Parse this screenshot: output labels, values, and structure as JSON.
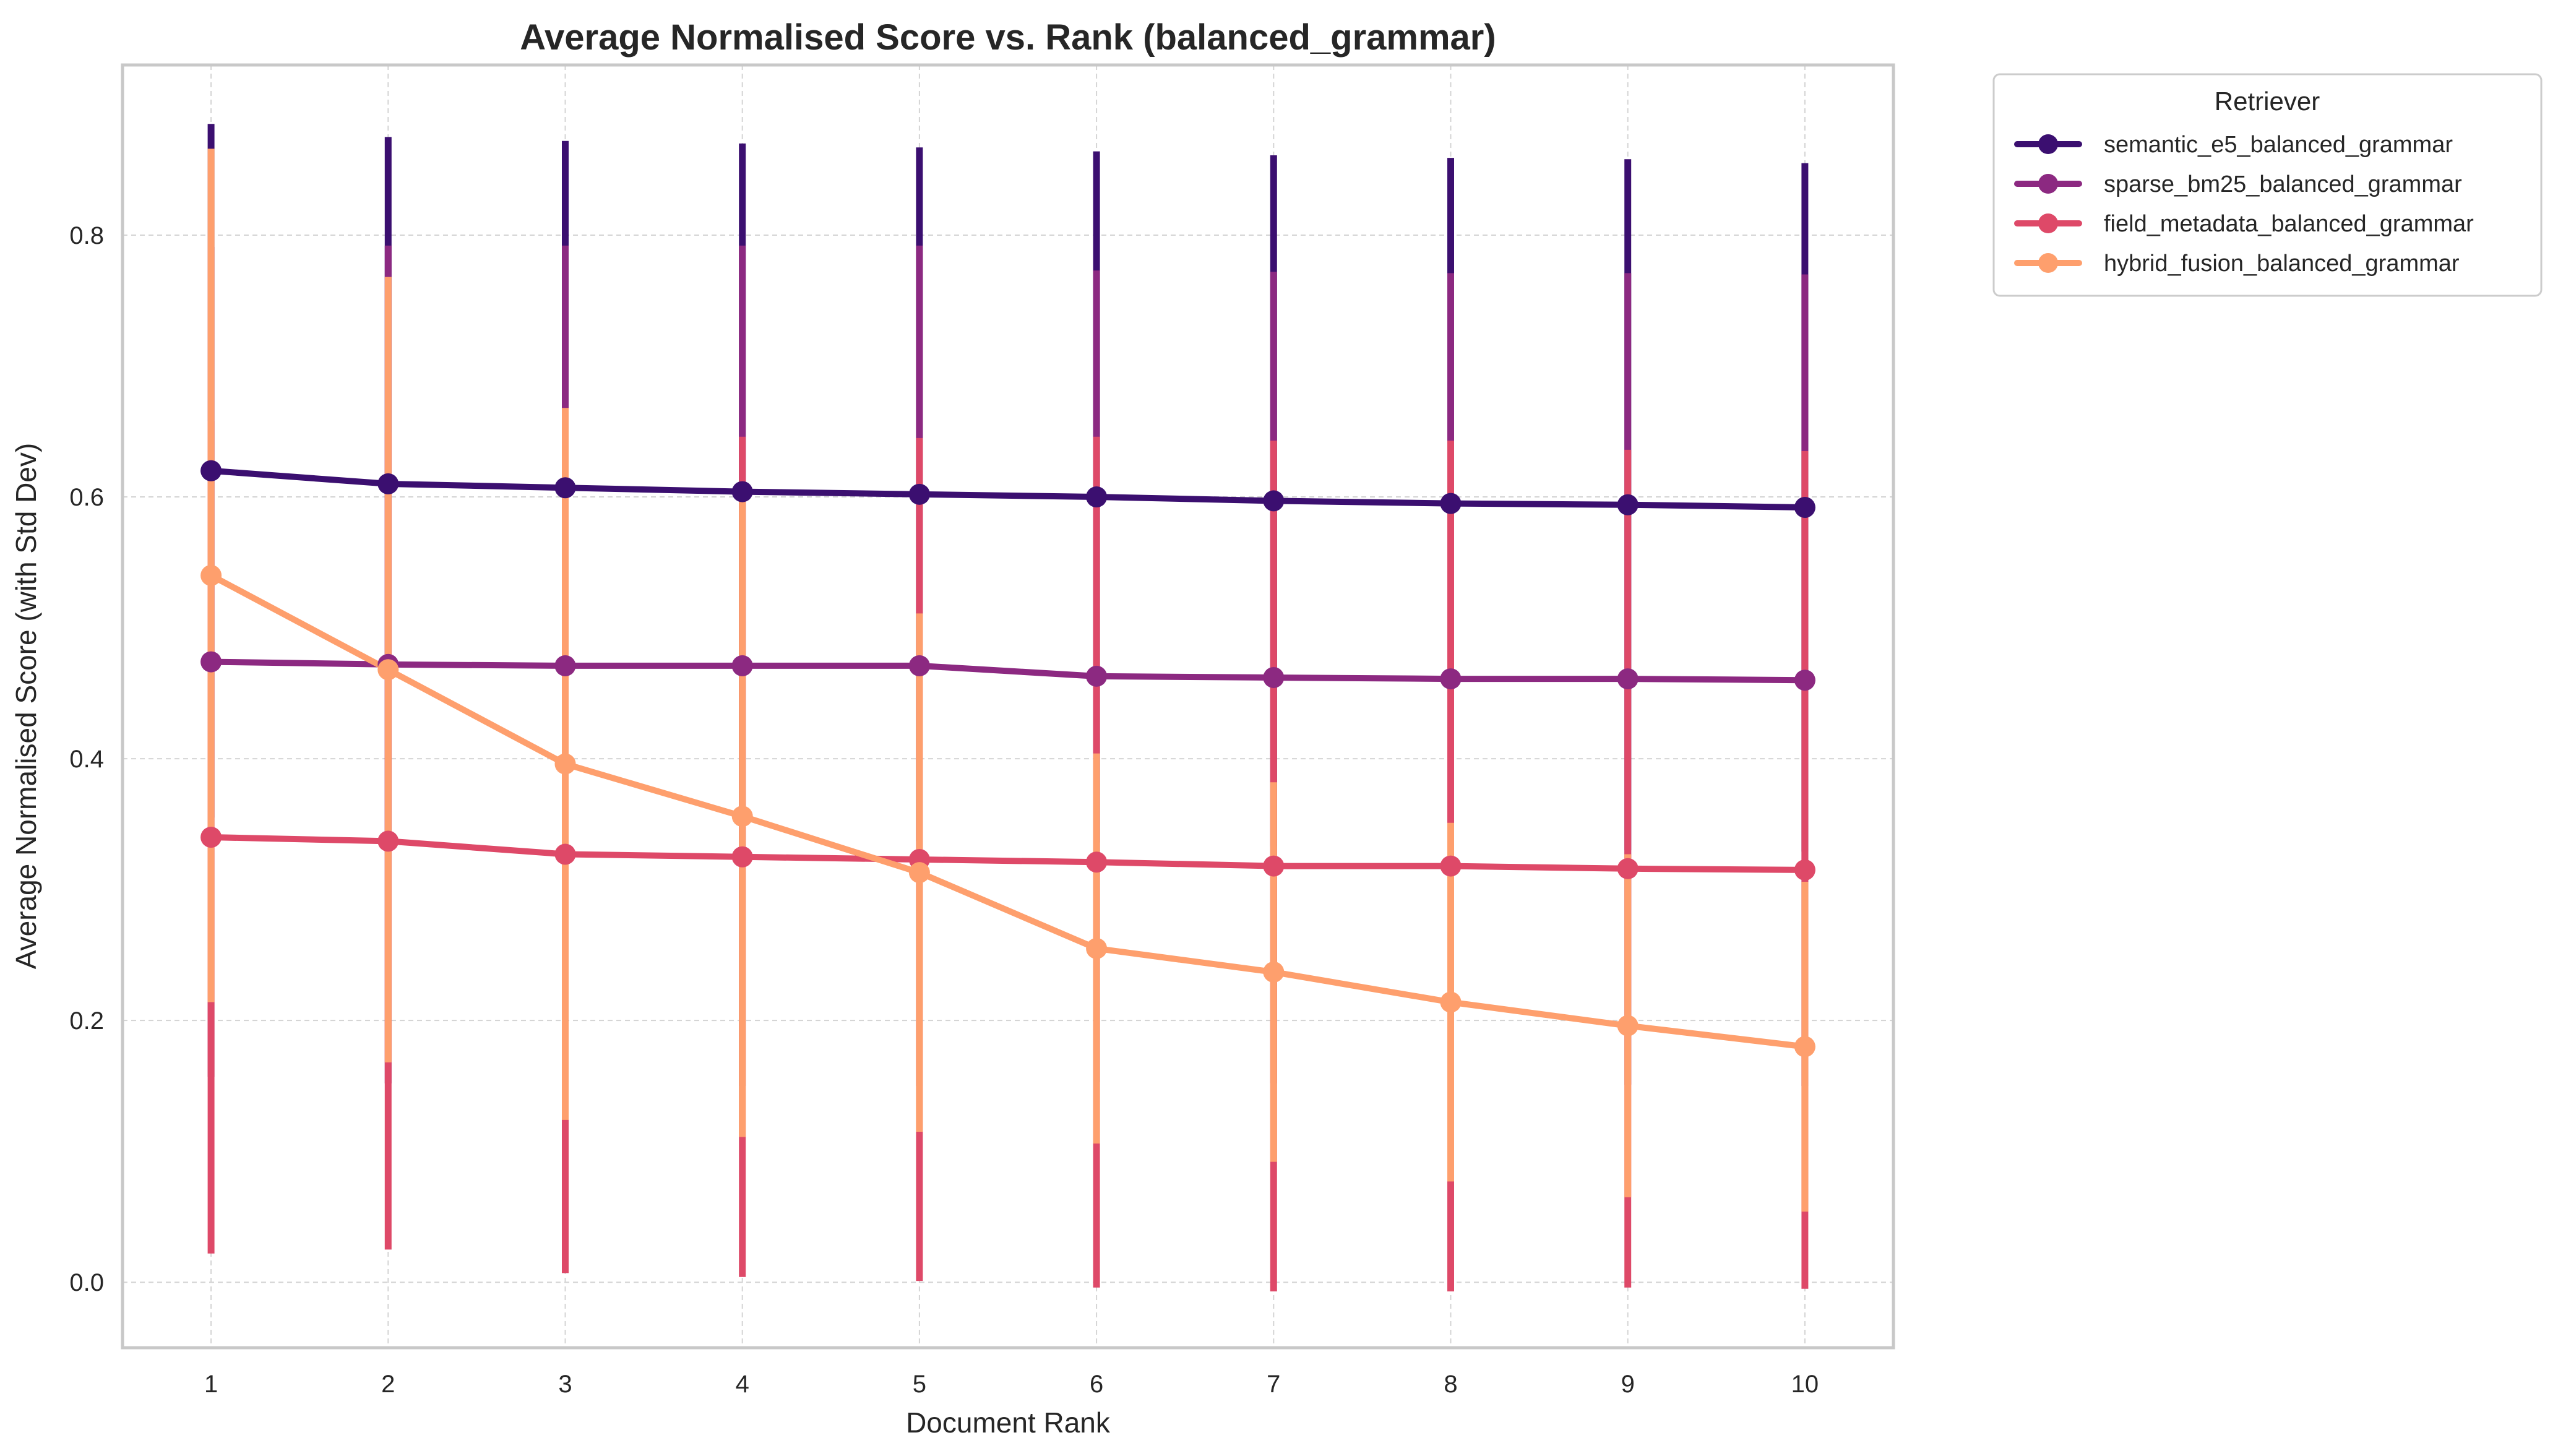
{
  "chart_data": {
    "type": "line",
    "title": "Average Normalised Score vs. Rank (balanced_grammar)",
    "xlabel": "Document Rank",
    "ylabel": "Average Normalised Score (with Std Dev)",
    "x": [
      1,
      2,
      3,
      4,
      5,
      6,
      7,
      8,
      9,
      10
    ],
    "xlim": [
      0.5,
      10.5
    ],
    "ylim": [
      -0.05,
      0.93
    ],
    "yticks": [
      0.0,
      0.2,
      0.4,
      0.6,
      0.8
    ],
    "ytick_labels": [
      "0.0",
      "0.2",
      "0.4",
      "0.6",
      "0.8"
    ],
    "xtick_labels": [
      "1",
      "2",
      "3",
      "4",
      "5",
      "6",
      "7",
      "8",
      "9",
      "10"
    ],
    "grid": true,
    "legend": {
      "title": "Retriever",
      "placement": "outside-top-right"
    },
    "series": [
      {
        "name": "semantic_e5_balanced_grammar",
        "color": "#3b0f70",
        "values": [
          0.62,
          0.61,
          0.607,
          0.604,
          0.602,
          0.6,
          0.597,
          0.595,
          0.594,
          0.592
        ],
        "std": [
          0.265,
          0.265,
          0.265,
          0.266,
          0.265,
          0.264,
          0.264,
          0.264,
          0.264,
          0.263
        ]
      },
      {
        "name": "sparse_bm25_balanced_grammar",
        "color": "#8c2981",
        "values": [
          0.474,
          0.472,
          0.471,
          0.471,
          0.471,
          0.463,
          0.462,
          0.461,
          0.461,
          0.46
        ],
        "std": [
          0.317,
          0.32,
          0.321,
          0.321,
          0.321,
          0.31,
          0.31,
          0.31,
          0.31,
          0.31
        ]
      },
      {
        "name": "field_metadata_balanced_grammar",
        "color": "#de4968",
        "values": [
          0.34,
          0.337,
          0.327,
          0.325,
          0.323,
          0.321,
          0.318,
          0.318,
          0.316,
          0.315
        ],
        "std": [
          0.318,
          0.312,
          0.32,
          0.321,
          0.322,
          0.325,
          0.325,
          0.325,
          0.32,
          0.32
        ]
      },
      {
        "name": "hybrid_fusion_balanced_grammar",
        "color": "#fe9f6d",
        "values": [
          0.54,
          0.468,
          0.396,
          0.356,
          0.313,
          0.255,
          0.237,
          0.214,
          0.196,
          0.18
        ],
        "std": [
          0.326,
          0.3,
          0.272,
          0.245,
          0.198,
          0.149,
          0.145,
          0.137,
          0.131,
          0.126
        ]
      }
    ]
  }
}
